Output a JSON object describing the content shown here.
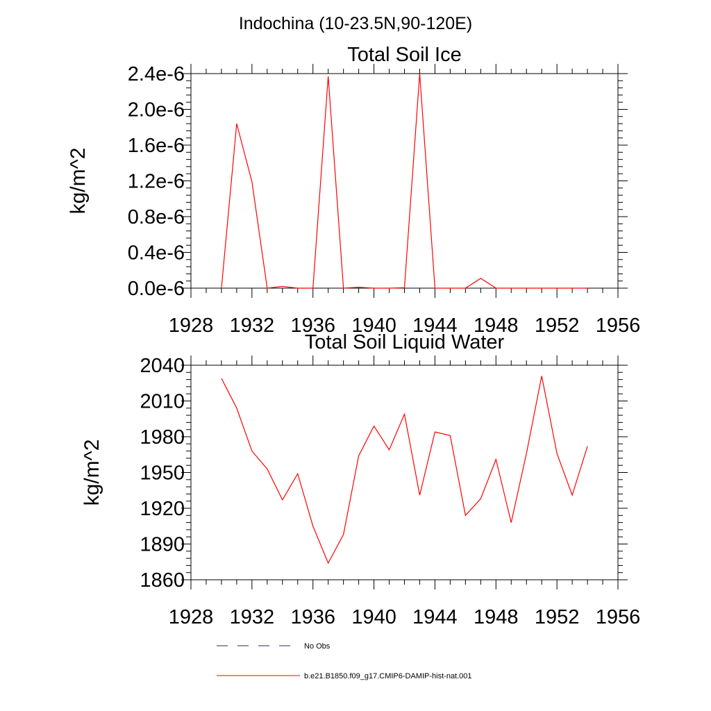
{
  "figure": {
    "title": "Indochina (10-23.5N,90-120E)",
    "legend": {
      "entries": [
        {
          "label": "No Obs",
          "style": "dashed",
          "color": "#1e2a5a"
        },
        {
          "label": "b.e21.B1850.f09_g17.CMIP6-DAMIP-hist-nat.001",
          "style": "solid",
          "color": "#ff0000"
        }
      ]
    }
  },
  "chart_data": [
    {
      "type": "line",
      "title": "Total Soil Ice",
      "xlabel": "",
      "ylabel": "kg/m^2",
      "xlim": [
        1928,
        1956
      ],
      "ylim": [
        0,
        2.4e-06
      ],
      "xticks": [
        1928,
        1932,
        1936,
        1940,
        1944,
        1948,
        1952,
        1956
      ],
      "xtick_labels": [
        "1928",
        "1932",
        "1936",
        "1940",
        "1944",
        "1948",
        "1952",
        "1956"
      ],
      "yticks": [
        0,
        4e-07,
        8e-07,
        1.2e-06,
        1.6e-06,
        2e-06,
        2.4e-06
      ],
      "ytick_labels": [
        "0.0e-6",
        "0.4e-6",
        "0.8e-6",
        "1.2e-6",
        "1.6e-6",
        "2.0e-6",
        "2.4e-6"
      ],
      "grid": false,
      "series": [
        {
          "name": "b.e21.B1850.f09_g17.CMIP6-DAMIP-hist-nat.001",
          "color": "#ff0000",
          "x": [
            1930,
            1931,
            1932,
            1933,
            1934,
            1935,
            1936,
            1937,
            1938,
            1939,
            1940,
            1941,
            1942,
            1943,
            1944,
            1945,
            1946,
            1947,
            1948,
            1949,
            1950,
            1951,
            1952,
            1953,
            1954
          ],
          "values": [
            0,
            1.84e-06,
            1.19e-06,
            0,
            2e-08,
            0,
            0,
            2.37e-06,
            0,
            1e-08,
            0,
            0,
            5e-09,
            2.4e-06,
            0,
            0,
            0,
            1.1e-07,
            0,
            0,
            0,
            0,
            0,
            0,
            0
          ]
        }
      ]
    },
    {
      "type": "line",
      "title": "Total Soil Liquid Water",
      "xlabel": "",
      "ylabel": "kg/m^2",
      "xlim": [
        1928,
        1956
      ],
      "ylim": [
        1860,
        2040
      ],
      "xticks": [
        1928,
        1932,
        1936,
        1940,
        1944,
        1948,
        1952,
        1956
      ],
      "xtick_labels": [
        "1928",
        "1932",
        "1936",
        "1940",
        "1944",
        "1948",
        "1952",
        "1956"
      ],
      "yticks": [
        1860,
        1890,
        1920,
        1950,
        1980,
        2010,
        2040
      ],
      "ytick_labels": [
        "1860",
        "1890",
        "1920",
        "1950",
        "1980",
        "2010",
        "2040"
      ],
      "grid": false,
      "series": [
        {
          "name": "b.e21.B1850.f09_g17.CMIP6-DAMIP-hist-nat.001",
          "color": "#ff0000",
          "x": [
            1930,
            1931,
            1932,
            1933,
            1934,
            1935,
            1936,
            1937,
            1938,
            1939,
            1940,
            1941,
            1942,
            1943,
            1944,
            1945,
            1946,
            1947,
            1948,
            1949,
            1950,
            1951,
            1952,
            1953,
            1954
          ],
          "values": [
            2029,
            2004,
            1968,
            1953,
            1927,
            1949,
            1905,
            1874,
            1898,
            1964,
            1989,
            1969,
            1999,
            1931,
            1984,
            1981,
            1914,
            1928,
            1961,
            1908,
            1966,
            2031,
            1966,
            1931,
            1972
          ]
        }
      ]
    }
  ]
}
